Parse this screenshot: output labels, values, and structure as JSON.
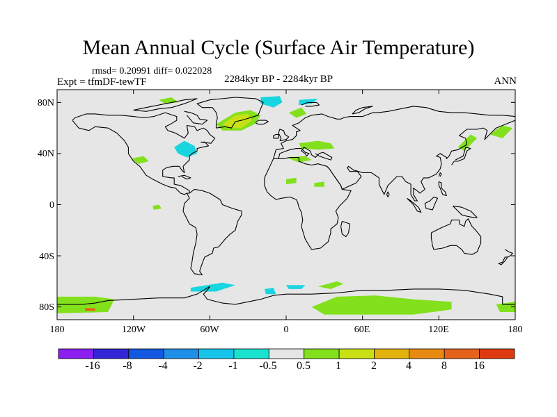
{
  "title": "Mean Annual Cycle (Surface Air Temperature)",
  "stats": "rmsd= 0.20991 diff= 0.022028",
  "experiment": "Expt = tfmDF-tewTF",
  "period": "2284kyr BP - 2284kyr BP",
  "season": "ANN",
  "axes": {
    "y_ticks": [
      {
        "value": 80,
        "label": "80N"
      },
      {
        "value": 40,
        "label": "40N"
      },
      {
        "value": 0,
        "label": "0"
      },
      {
        "value": -40,
        "label": "40S"
      },
      {
        "value": -80,
        "label": "80S"
      }
    ],
    "x_ticks": [
      {
        "value": -180,
        "label": "180"
      },
      {
        "value": -120,
        "label": "120W"
      },
      {
        "value": -60,
        "label": "60W"
      },
      {
        "value": 0,
        "label": "0"
      },
      {
        "value": 60,
        "label": "60E"
      },
      {
        "value": 120,
        "label": "120E"
      },
      {
        "value": 180,
        "label": "180"
      }
    ]
  },
  "colorbar": {
    "labels": [
      "-16",
      "-8",
      "-4",
      "-2",
      "-1",
      "-0.5",
      "0.5",
      "1",
      "2",
      "4",
      "8",
      "16"
    ],
    "colors": [
      "#8a1ff0",
      "#3324d6",
      "#1258e0",
      "#1f8ee6",
      "#16c4ea",
      "#19e3cf",
      "#e6e6e6",
      "#82e01c",
      "#c8e014",
      "#e2b20e",
      "#e88a12",
      "#e4621a",
      "#de3a12"
    ]
  },
  "colors": {
    "background": "#e6e6e6",
    "cool": "#19d5e0",
    "warm": "#82e01c",
    "warmer": "#c8e014",
    "hot": "#e4621a",
    "coast": "#000000"
  }
}
